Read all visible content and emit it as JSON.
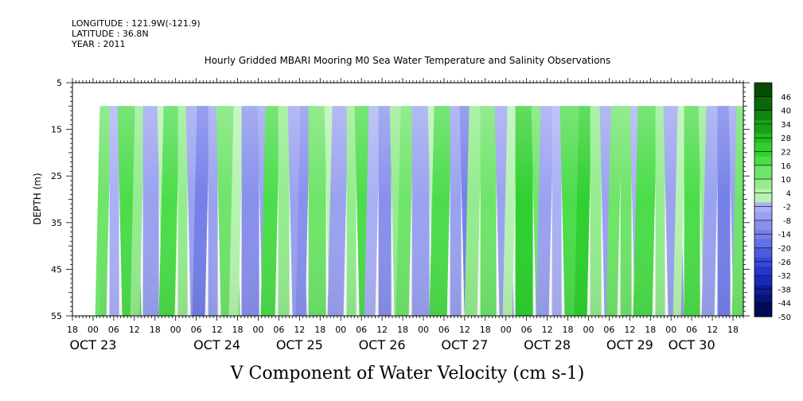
{
  "header": {
    "longitude": "LONGITUDE : 121.9W(-121.9)",
    "latitude": "LATITUDE : 36.8N",
    "year": "YEAR : 2011",
    "title": "Hourly Gridded MBARI Mooring M0 Sea Water Temperature and Salinity Observations"
  },
  "chart_data": {
    "type": "heatmap",
    "title": "Hourly Gridded MBARI Mooring M0 Sea Water Temperature and Salinity Observations",
    "xlabel": "V Component of Water Velocity (cm s-1)",
    "ylabel": "DEPTH (m)",
    "ylim": [
      5,
      55
    ],
    "y_inverted": true,
    "y_ticks": [
      5,
      15,
      25,
      35,
      45,
      55
    ],
    "data_depth_range": [
      10,
      55
    ],
    "x_axis": {
      "start": "2011-10-22T18:00",
      "end": "2011-10-30T21:00",
      "data_start": "2011-10-23T02:00",
      "hour_ticks": [
        "18",
        "00",
        "06",
        "12",
        "18",
        "00",
        "06",
        "12",
        "18",
        "00",
        "06",
        "12",
        "18",
        "00",
        "06",
        "12",
        "18",
        "00",
        "06",
        "12",
        "18",
        "00",
        "06",
        "12",
        "18",
        "00",
        "06",
        "12",
        "18",
        "00",
        "06",
        "12",
        "18"
      ],
      "day_labels": [
        "OCT 23",
        "OCT 24",
        "OCT 25",
        "OCT 26",
        "OCT 27",
        "OCT 28",
        "OCT 29",
        "OCT 30"
      ]
    },
    "colorbar": {
      "levels": [
        -50,
        -44,
        -38,
        -32,
        -26,
        -20,
        -14,
        -8,
        -2,
        4,
        10,
        16,
        22,
        28,
        34,
        40,
        46
      ],
      "labels": [
        "46",
        "40",
        "34",
        "28",
        "22",
        "16",
        "10",
        "4",
        "-2",
        "-8",
        "-14",
        "-20",
        "-26",
        "-32",
        "-38",
        "-44",
        "-50"
      ],
      "range": [
        -50,
        52
      ]
    },
    "colors": {
      "negative": [
        "#aab0f4",
        "#9aa2f0",
        "#8890ec",
        "#7580e8",
        "#6270e4",
        "#4d5cde",
        "#3848d6",
        "#2636cc",
        "#1a2ab8",
        "#0e1e98",
        "#061478",
        "#000a55"
      ],
      "positive": [
        "#b6f2b0",
        "#94ec8e",
        "#6fe46a",
        "#4cdc4a",
        "#2fd02f",
        "#22bc22",
        "#18a018",
        "#108410",
        "#0a680a",
        "#044c04"
      ]
    }
  }
}
